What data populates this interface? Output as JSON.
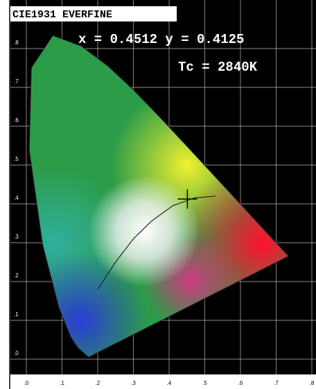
{
  "chart_data": {
    "type": "scatter",
    "title": "CIE1931 EVERFINE",
    "annotations": [
      "x = 0.4512 y = 0.4125",
      "Tc = 2840K"
    ],
    "x": [
      0.4512
    ],
    "series": [
      {
        "values": [
          0.4125
        ],
        "color": "#000000"
      }
    ],
    "xlim": [
      0,
      0.8
    ],
    "ylim": [
      0,
      0.9
    ],
    "xticks": [
      {
        "value": 0,
        "label": ".0"
      },
      {
        "value": 0.1,
        "label": ".1"
      },
      {
        "value": 0.2,
        "label": ".2"
      },
      {
        "value": 0.3,
        "label": ".3"
      },
      {
        "value": 0.4,
        "label": ".4"
      },
      {
        "value": 0.5,
        "label": ".5"
      },
      {
        "value": 0.6,
        "label": ".6"
      },
      {
        "value": 0.7,
        "label": ".7"
      },
      {
        "value": 0.8,
        "label": ".8"
      }
    ],
    "yticks": [
      {
        "value": 0,
        "label": ".0"
      },
      {
        "value": 0.1,
        "label": ".1"
      },
      {
        "value": 0.2,
        "label": ".2"
      },
      {
        "value": 0.3,
        "label": ".3"
      },
      {
        "value": 0.4,
        "label": ".4"
      },
      {
        "value": 0.5,
        "label": ".5"
      },
      {
        "value": 0.6,
        "label": ".6"
      },
      {
        "value": 0.7,
        "label": ".7"
      },
      {
        "value": 0.8,
        "label": ".8"
      }
    ],
    "grid": true
  }
}
